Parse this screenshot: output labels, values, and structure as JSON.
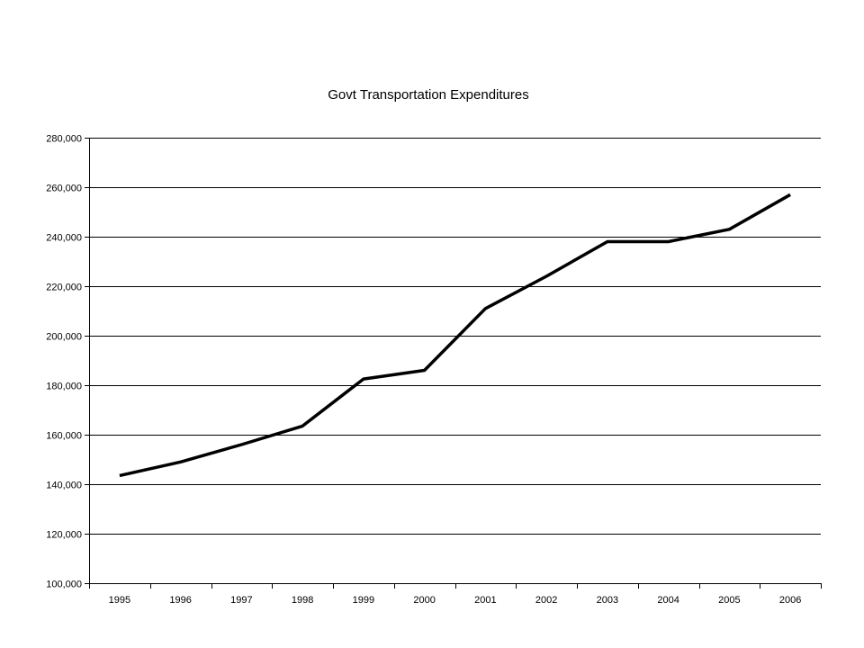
{
  "chart_data": {
    "type": "line",
    "title": "Govt Transportation Expenditures",
    "xlabel": "",
    "ylabel": "",
    "categories": [
      "1995",
      "1996",
      "1997",
      "1998",
      "1999",
      "2000",
      "2001",
      "2002",
      "2003",
      "2004",
      "2005",
      "2006"
    ],
    "series": [
      {
        "values": [
          143500,
          149000,
          156000,
          163500,
          182500,
          186000,
          211000,
          224000,
          238000,
          238000,
          243000,
          257000
        ]
      }
    ],
    "ylim": [
      100000,
      280000
    ],
    "yticks": [
      "100,000",
      "120,000",
      "140,000",
      "160,000",
      "180,000",
      "200,000",
      "220,000",
      "240,000",
      "260,000",
      "280,000"
    ],
    "ytick_values": [
      100000,
      120000,
      140000,
      160000,
      180000,
      200000,
      220000,
      240000,
      260000,
      280000
    ],
    "grid": true,
    "legend": "none",
    "colors": {
      "line": "#000000",
      "grid": "#000000",
      "background": "#ffffff"
    }
  }
}
